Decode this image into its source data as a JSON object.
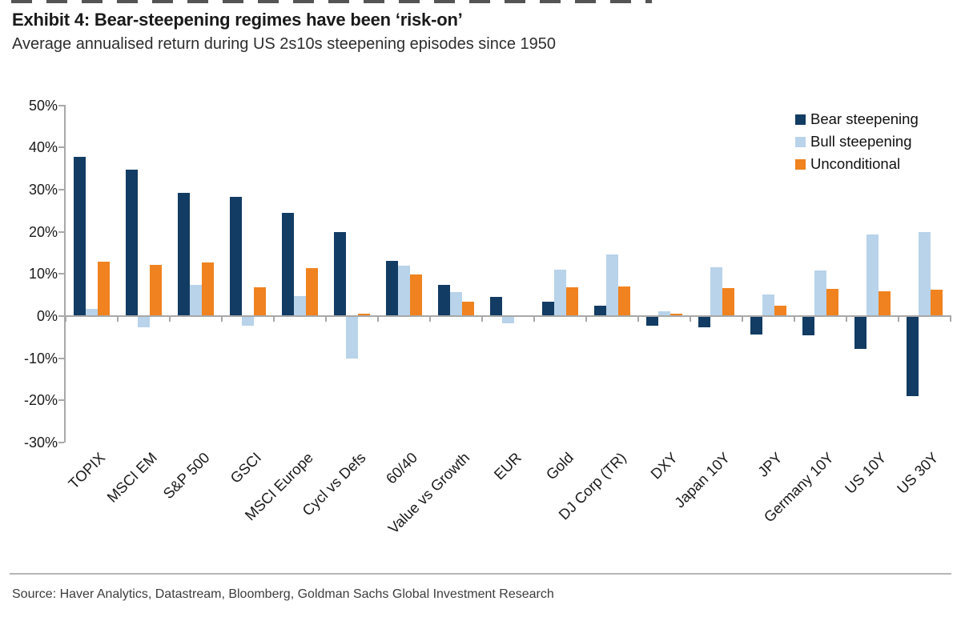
{
  "header": {
    "title": "Exhibit 4: Bear-steepening regimes have been ‘risk-on’",
    "subtitle": "Average annualised return during US 2s10s steepening episodes since 1950"
  },
  "footer": {
    "source": "Source: Haver Analytics, Datastream, Bloomberg, Goldman Sachs Global Investment Research"
  },
  "colors": {
    "bear_steepening": "#123c63",
    "bull_steepening": "#b8d3ea",
    "unconditional": "#f0821f",
    "axis": "#a8a8a8"
  },
  "chart_data": {
    "type": "bar",
    "title": "Average annualised return during US 2s10s steepening episodes since 1950",
    "categories": [
      "TOPIX",
      "MSCI EM",
      "S&P 500",
      "GSCI",
      "MSCI Europe",
      "Cycl vs Defs",
      "60/40",
      "Value vs Growth",
      "EUR",
      "Gold",
      "DJ Corp (TR)",
      "DXY",
      "Japan 10Y",
      "JPY",
      "Germany 10Y",
      "US 10Y",
      "US 30Y"
    ],
    "series": [
      {
        "name": "Bear steepening",
        "color_key": "bear_steepening",
        "values": [
          37.6,
          34.6,
          29.0,
          28.0,
          24.3,
          19.8,
          12.9,
          7.3,
          4.3,
          3.2,
          2.3,
          -2.1,
          -2.5,
          -4.2,
          -4.3,
          -7.5,
          -18.8
        ]
      },
      {
        "name": "Bull steepening",
        "color_key": "bull_steepening",
        "values": [
          1.5,
          -2.5,
          7.3,
          -2.0,
          4.5,
          -9.8,
          11.7,
          5.5,
          -1.6,
          10.8,
          14.5,
          1.0,
          11.3,
          5.0,
          10.6,
          19.1,
          19.8
        ]
      },
      {
        "name": "Unconditional",
        "color_key": "unconditional",
        "values": [
          12.7,
          12.0,
          12.5,
          6.7,
          11.2,
          0.4,
          9.6,
          3.3,
          0.0,
          6.6,
          6.9,
          0.4,
          6.4,
          2.3,
          6.2,
          5.6,
          6.0
        ]
      }
    ],
    "yticks": [
      50,
      40,
      30,
      20,
      10,
      0,
      -10,
      -20,
      -30
    ],
    "ytick_suffix": "%",
    "ylim": [
      -30,
      50
    ],
    "grid": false,
    "legend_position": "top-right"
  }
}
